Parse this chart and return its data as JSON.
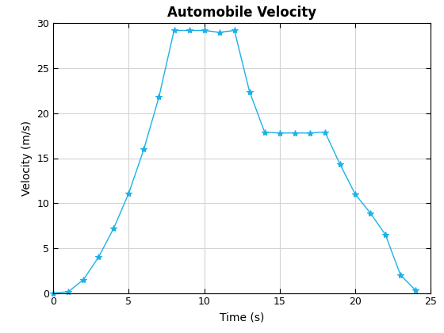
{
  "title": "Automobile Velocity",
  "xlabel": "Time (s)",
  "ylabel": "Velocity (m/s)",
  "x": [
    0,
    1,
    2,
    3,
    4,
    5,
    6,
    7,
    8,
    9,
    10,
    11,
    12,
    13,
    14,
    15,
    16,
    17,
    18,
    19,
    20,
    21,
    22,
    23,
    24
  ],
  "y": [
    0,
    0.15,
    1.5,
    4.0,
    7.2,
    11.1,
    16.0,
    21.8,
    29.2,
    29.2,
    29.2,
    29.0,
    29.2,
    22.4,
    17.9,
    17.8,
    17.8,
    17.8,
    17.9,
    14.3,
    11.0,
    8.9,
    6.5,
    2.0,
    0.3
  ],
  "line_color": "#1ab2e8",
  "marker": "*",
  "markersize": 6,
  "linewidth": 1.0,
  "xlim": [
    0,
    25
  ],
  "ylim": [
    0,
    30
  ],
  "xticks": [
    0,
    5,
    10,
    15,
    20,
    25
  ],
  "yticks": [
    0,
    5,
    10,
    15,
    20,
    25,
    30
  ],
  "title_fontsize": 12,
  "label_fontsize": 10,
  "tick_fontsize": 9,
  "grid_color": "#d3d3d3",
  "grid_linewidth": 0.8,
  "background_color": "#ffffff"
}
